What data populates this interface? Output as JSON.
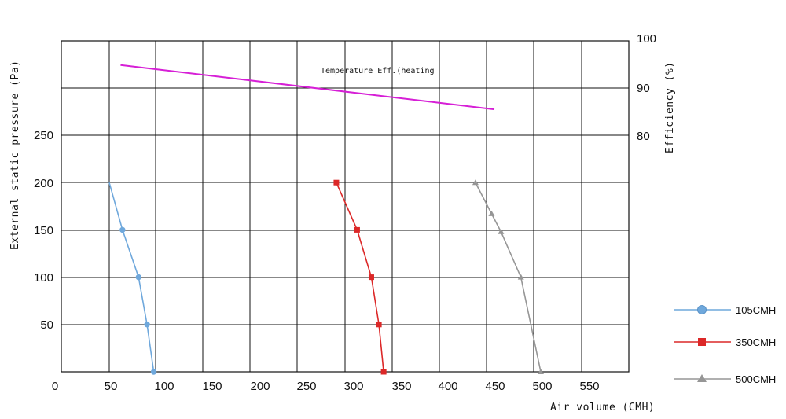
{
  "chart_data": {
    "type": "line",
    "xlabel": "Air volume (CMH)",
    "ylabel": "External static pressure (Pa)",
    "y2label": "Efficiency (%)",
    "x_ticks": [
      "0",
      "50",
      "100",
      "150",
      "200",
      "250",
      "300",
      "350",
      "400",
      "450",
      "500",
      "550"
    ],
    "y_ticks": [
      "50",
      "100",
      "150",
      "200",
      "250"
    ],
    "y2_ticks": [
      "80",
      "90",
      "100"
    ],
    "xlim": [
      0,
      600
    ],
    "ylim": [
      0,
      350
    ],
    "y2lim": [
      70,
      100
    ],
    "grid": true,
    "legend_position": "right",
    "annotation": "Temperature Eff.(heating",
    "efficiency_series": {
      "color": "#d61fd6",
      "x": [
        105,
        500
      ],
      "y": [
        94.4,
        85.3
      ]
    },
    "series": [
      {
        "name": "105CMH",
        "color": "#6fa8dc",
        "marker": "circle",
        "x": [
          93,
          107,
          124,
          133,
          140
        ],
        "y": [
          200,
          150,
          100,
          50,
          0
        ]
      },
      {
        "name": "350CMH",
        "color": "#dc2828",
        "marker": "square",
        "x": [
          333,
          355,
          370,
          378,
          383
        ],
        "y": [
          200,
          150,
          100,
          50,
          0
        ]
      },
      {
        "name": "500CMH",
        "color": "#969696",
        "marker": "triangle",
        "x": [
          480,
          497,
          507,
          528,
          549
        ],
        "y": [
          200,
          167,
          148,
          100,
          0
        ]
      }
    ]
  }
}
